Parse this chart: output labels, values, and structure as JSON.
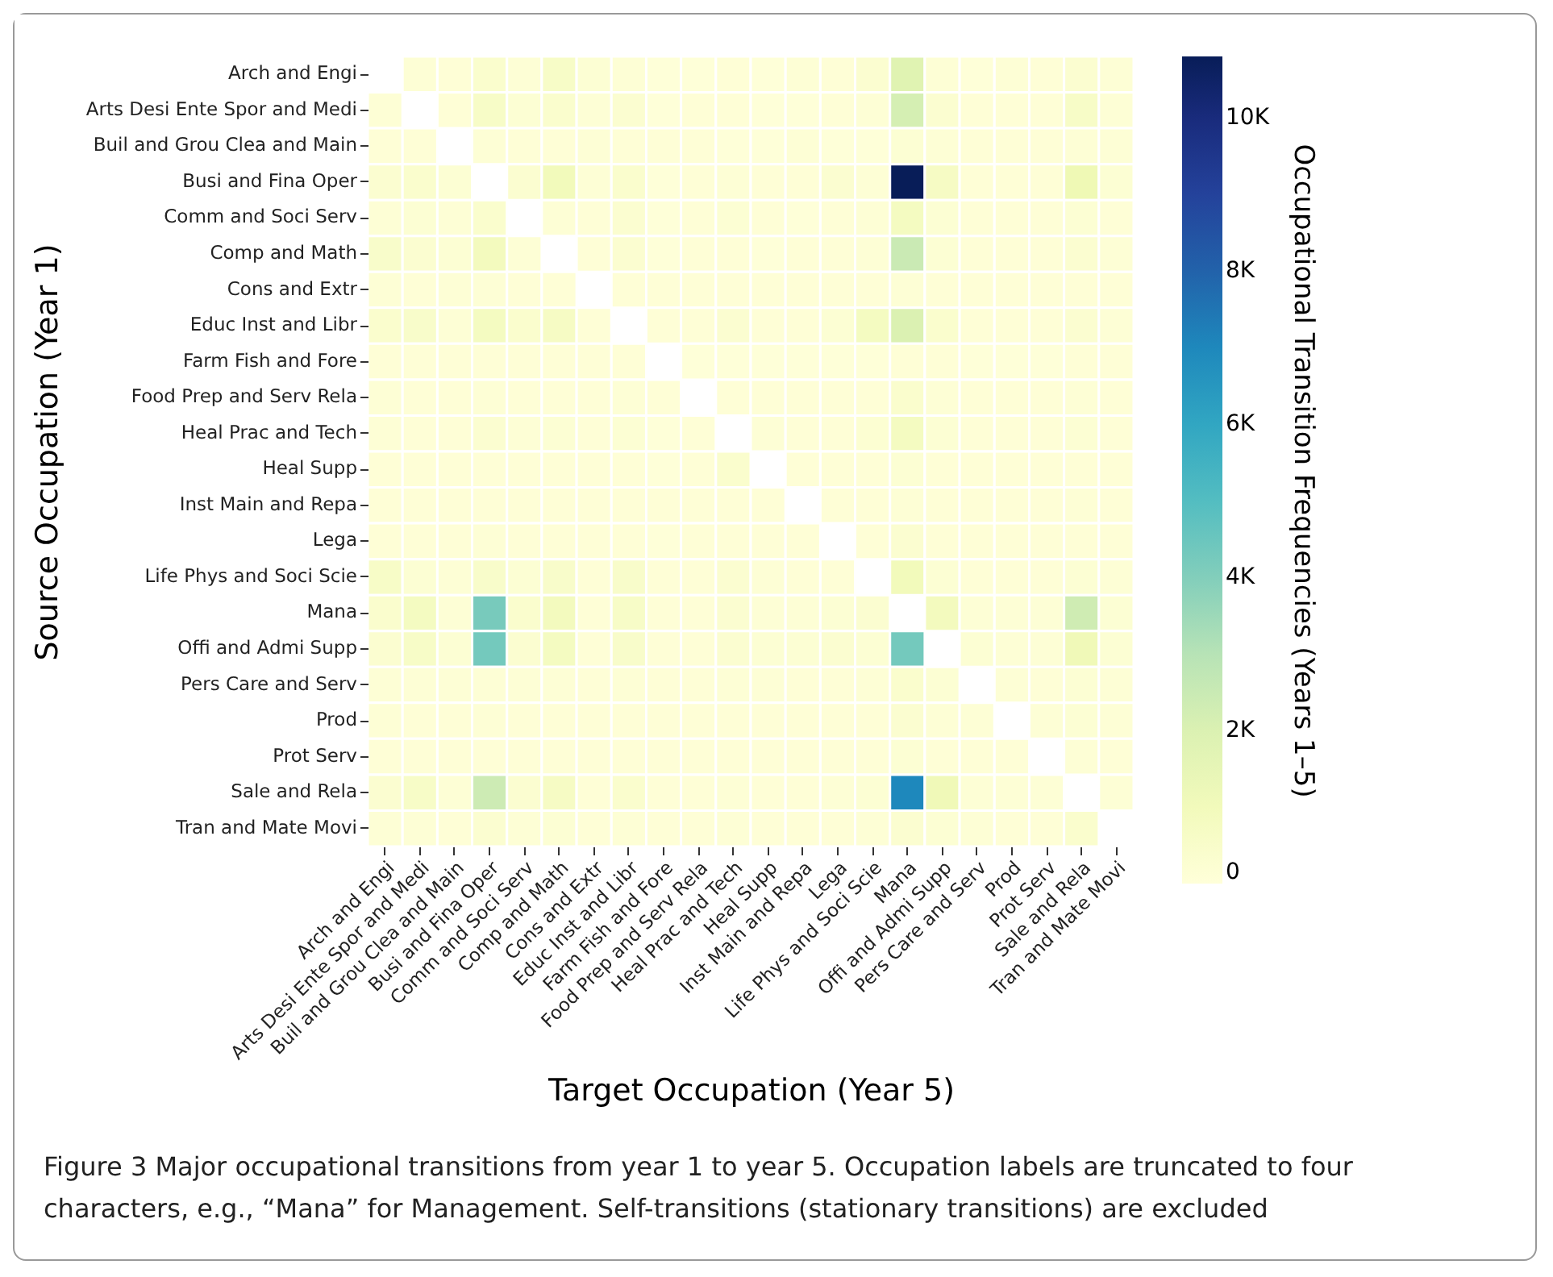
{
  "chart_data": {
    "type": "heatmap",
    "xlabel": "Target Occupation (Year 5)",
    "ylabel": "Source Occupation (Year 1)",
    "clabel": "Occupational Transition Frequencies (Years 1–5)",
    "categories": [
      "Arch and Engi",
      "Arts Desi Ente Spor and Medi",
      "Buil and Grou Clea and Main",
      "Busi and Fina Oper",
      "Comm and Soci Serv",
      "Comp and Math",
      "Cons and Extr",
      "Educ Inst and Libr",
      "Farm Fish and Fore",
      "Food Prep and Serv Rela",
      "Heal Prac and Tech",
      "Heal Supp",
      "Inst Main and Repa",
      "Lega",
      "Life Phys and Soci Scie",
      "Mana",
      "Offi and Admi Supp",
      "Pers Care and Serv",
      "Prod",
      "Prot Serv",
      "Sale and Rela",
      "Tran and Mate Movi"
    ],
    "y_categories": [
      "Arch and Engi",
      "Arts Desi Ente Spor and Medi",
      "Buil and Grou Clea and Main",
      "Busi and Fina Oper",
      "Comm and Soci Serv",
      "Comp and Math",
      "Cons and Extr",
      "Educ Inst and Libr",
      "Farm Fish and Fore",
      "Food Prep and Serv Rela",
      "Heal Prac and Tech",
      "Heal Supp",
      "Inst Main and Repa",
      "Lega",
      "Life Phys and Soci Scie",
      "Mana",
      "Offi and Admi Supp",
      "Pers Care and Serv",
      "Prod",
      "Prot Serv",
      "Sale and Rela",
      "Tran and Mate Movi"
    ],
    "cells": [
      [
        null,
        150,
        100,
        400,
        150,
        600,
        200,
        150,
        50,
        50,
        100,
        50,
        150,
        100,
        300,
        1800,
        150,
        50,
        150,
        100,
        300,
        150
      ],
      [
        150,
        null,
        100,
        600,
        200,
        400,
        150,
        300,
        50,
        100,
        100,
        50,
        50,
        100,
        150,
        2200,
        300,
        100,
        100,
        100,
        600,
        150
      ],
      [
        100,
        100,
        null,
        150,
        100,
        100,
        150,
        100,
        100,
        100,
        50,
        50,
        150,
        50,
        50,
        200,
        150,
        100,
        100,
        100,
        150,
        150
      ],
      [
        300,
        400,
        200,
        null,
        300,
        1000,
        150,
        400,
        50,
        100,
        150,
        100,
        100,
        300,
        150,
        10800,
        700,
        100,
        100,
        100,
        1200,
        200
      ],
      [
        150,
        200,
        150,
        400,
        null,
        150,
        100,
        300,
        50,
        100,
        200,
        100,
        50,
        100,
        150,
        800,
        200,
        100,
        100,
        100,
        200,
        100
      ],
      [
        500,
        300,
        200,
        900,
        150,
        null,
        100,
        300,
        50,
        100,
        100,
        50,
        100,
        100,
        150,
        2600,
        200,
        100,
        100,
        100,
        300,
        150
      ],
      [
        150,
        100,
        150,
        150,
        100,
        100,
        null,
        100,
        100,
        100,
        100,
        100,
        100,
        100,
        100,
        150,
        100,
        100,
        100,
        100,
        100,
        100
      ],
      [
        400,
        500,
        150,
        800,
        400,
        700,
        100,
        null,
        100,
        100,
        300,
        100,
        100,
        200,
        800,
        2000,
        400,
        100,
        100,
        100,
        300,
        150
      ],
      [
        100,
        100,
        100,
        100,
        100,
        100,
        100,
        100,
        null,
        50,
        50,
        50,
        50,
        50,
        50,
        100,
        100,
        50,
        50,
        50,
        100,
        100
      ],
      [
        150,
        100,
        100,
        150,
        100,
        100,
        100,
        150,
        100,
        null,
        100,
        100,
        100,
        100,
        100,
        400,
        150,
        100,
        100,
        100,
        150,
        100
      ],
      [
        150,
        100,
        100,
        300,
        150,
        200,
        100,
        200,
        50,
        100,
        null,
        150,
        100,
        100,
        250,
        800,
        200,
        100,
        100,
        100,
        200,
        100
      ],
      [
        100,
        100,
        100,
        100,
        100,
        100,
        100,
        100,
        50,
        100,
        400,
        null,
        100,
        100,
        100,
        200,
        100,
        100,
        100,
        100,
        100,
        100
      ],
      [
        100,
        100,
        100,
        100,
        100,
        100,
        100,
        100,
        100,
        100,
        100,
        100,
        null,
        100,
        100,
        150,
        100,
        100,
        100,
        100,
        150,
        100
      ],
      [
        100,
        100,
        100,
        150,
        100,
        100,
        100,
        100,
        50,
        100,
        100,
        100,
        100,
        null,
        100,
        300,
        100,
        100,
        100,
        100,
        100,
        100
      ],
      [
        600,
        200,
        150,
        500,
        200,
        500,
        100,
        500,
        100,
        100,
        300,
        150,
        100,
        100,
        null,
        1000,
        200,
        100,
        100,
        100,
        200,
        150
      ],
      [
        400,
        800,
        150,
        4200,
        400,
        900,
        100,
        600,
        100,
        100,
        300,
        150,
        150,
        200,
        300,
        null,
        900,
        150,
        150,
        150,
        2400,
        200
      ],
      [
        300,
        600,
        200,
        4300,
        300,
        800,
        100,
        500,
        100,
        100,
        300,
        200,
        200,
        300,
        200,
        4300,
        null,
        200,
        150,
        150,
        1100,
        200
      ],
      [
        150,
        150,
        150,
        150,
        150,
        150,
        100,
        150,
        100,
        100,
        150,
        150,
        100,
        100,
        150,
        400,
        200,
        null,
        150,
        100,
        200,
        150
      ],
      [
        150,
        100,
        100,
        150,
        100,
        100,
        100,
        100,
        100,
        100,
        100,
        100,
        100,
        100,
        100,
        300,
        150,
        150,
        null,
        150,
        200,
        150
      ],
      [
        100,
        100,
        100,
        100,
        100,
        100,
        100,
        100,
        100,
        100,
        100,
        100,
        100,
        100,
        100,
        200,
        100,
        100,
        100,
        null,
        150,
        100
      ],
      [
        300,
        600,
        150,
        2500,
        300,
        700,
        100,
        400,
        100,
        100,
        150,
        100,
        100,
        150,
        200,
        7000,
        1100,
        150,
        150,
        150,
        null,
        150
      ],
      [
        150,
        150,
        100,
        300,
        150,
        200,
        100,
        150,
        100,
        100,
        150,
        100,
        100,
        100,
        150,
        300,
        200,
        150,
        100,
        100,
        400,
        null
      ]
    ],
    "clim": [
      0,
      10800
    ],
    "cticks": [
      0,
      {
        "value": 2000,
        "label": "2K"
      },
      {
        "value": 4000,
        "label": "4K"
      },
      {
        "value": 6000,
        "label": "6K"
      },
      {
        "value": 8000,
        "label": "8K"
      },
      {
        "value": 10000,
        "label": "10K"
      }
    ],
    "annotations": [
      "Figure 3 Major occupational transitions from year 1 to year 5. Occupation labels are truncated to four characters, e.g., “Mana” for Management. Self-transitions (stationary transitions) are excluded"
    ]
  }
}
